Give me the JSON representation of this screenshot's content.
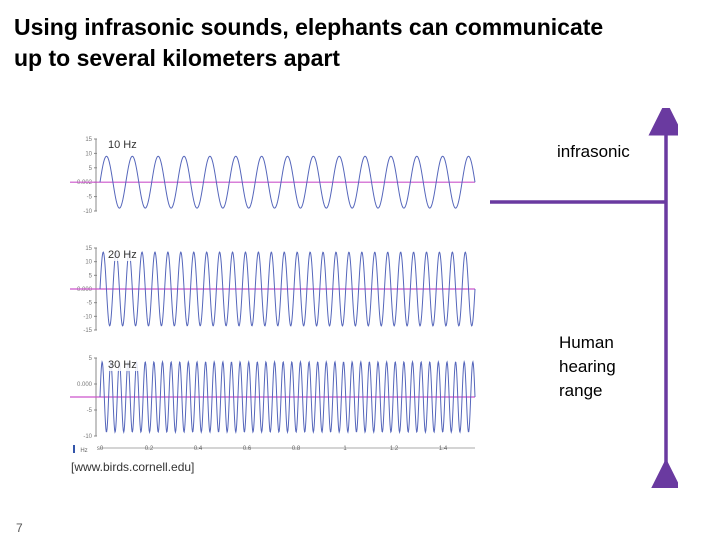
{
  "slide": {
    "title_line1": "Using infrasonic sounds, elephants can communicate",
    "title_line2": "up to several kilometers apart",
    "source": "[www.birds.cornell.edu]",
    "page_number": "7",
    "label_infrasonic": "infrasonic",
    "label_human_1": "Human",
    "label_human_2": "hearing",
    "label_human_3": "range"
  },
  "colors": {
    "wave": "#5566bb",
    "baseline": "#cc55cc",
    "bracket": "#6a3aa0",
    "axis": "#888888"
  },
  "chart_data": [
    {
      "type": "line",
      "title": "10 Hz",
      "frequency_hz": 10,
      "x": [
        0,
        1.45
      ],
      "ylim": [
        -10,
        15
      ],
      "yticks": [
        "15",
        "10",
        "5",
        "0.002",
        "-5",
        "-10"
      ]
    },
    {
      "type": "line",
      "title": "20 Hz",
      "frequency_hz": 20,
      "x": [
        0,
        1.45
      ],
      "ylim": [
        -15,
        15
      ],
      "yticks": [
        "15",
        "10",
        "5",
        "0.000",
        "-5",
        "-10",
        "-15"
      ]
    },
    {
      "type": "line",
      "title": "30 Hz",
      "frequency_hz": 30,
      "x": [
        0,
        1.45
      ],
      "ylim": [
        -10,
        10
      ],
      "yticks": [
        "5",
        "0.000",
        "-5",
        "-10"
      ]
    }
  ],
  "x_axis": {
    "ticks": [
      "s0",
      "0.2",
      "0.4",
      "0.6",
      "0.8",
      "1",
      "1.2",
      "1.4"
    ],
    "unit": "Hz"
  }
}
